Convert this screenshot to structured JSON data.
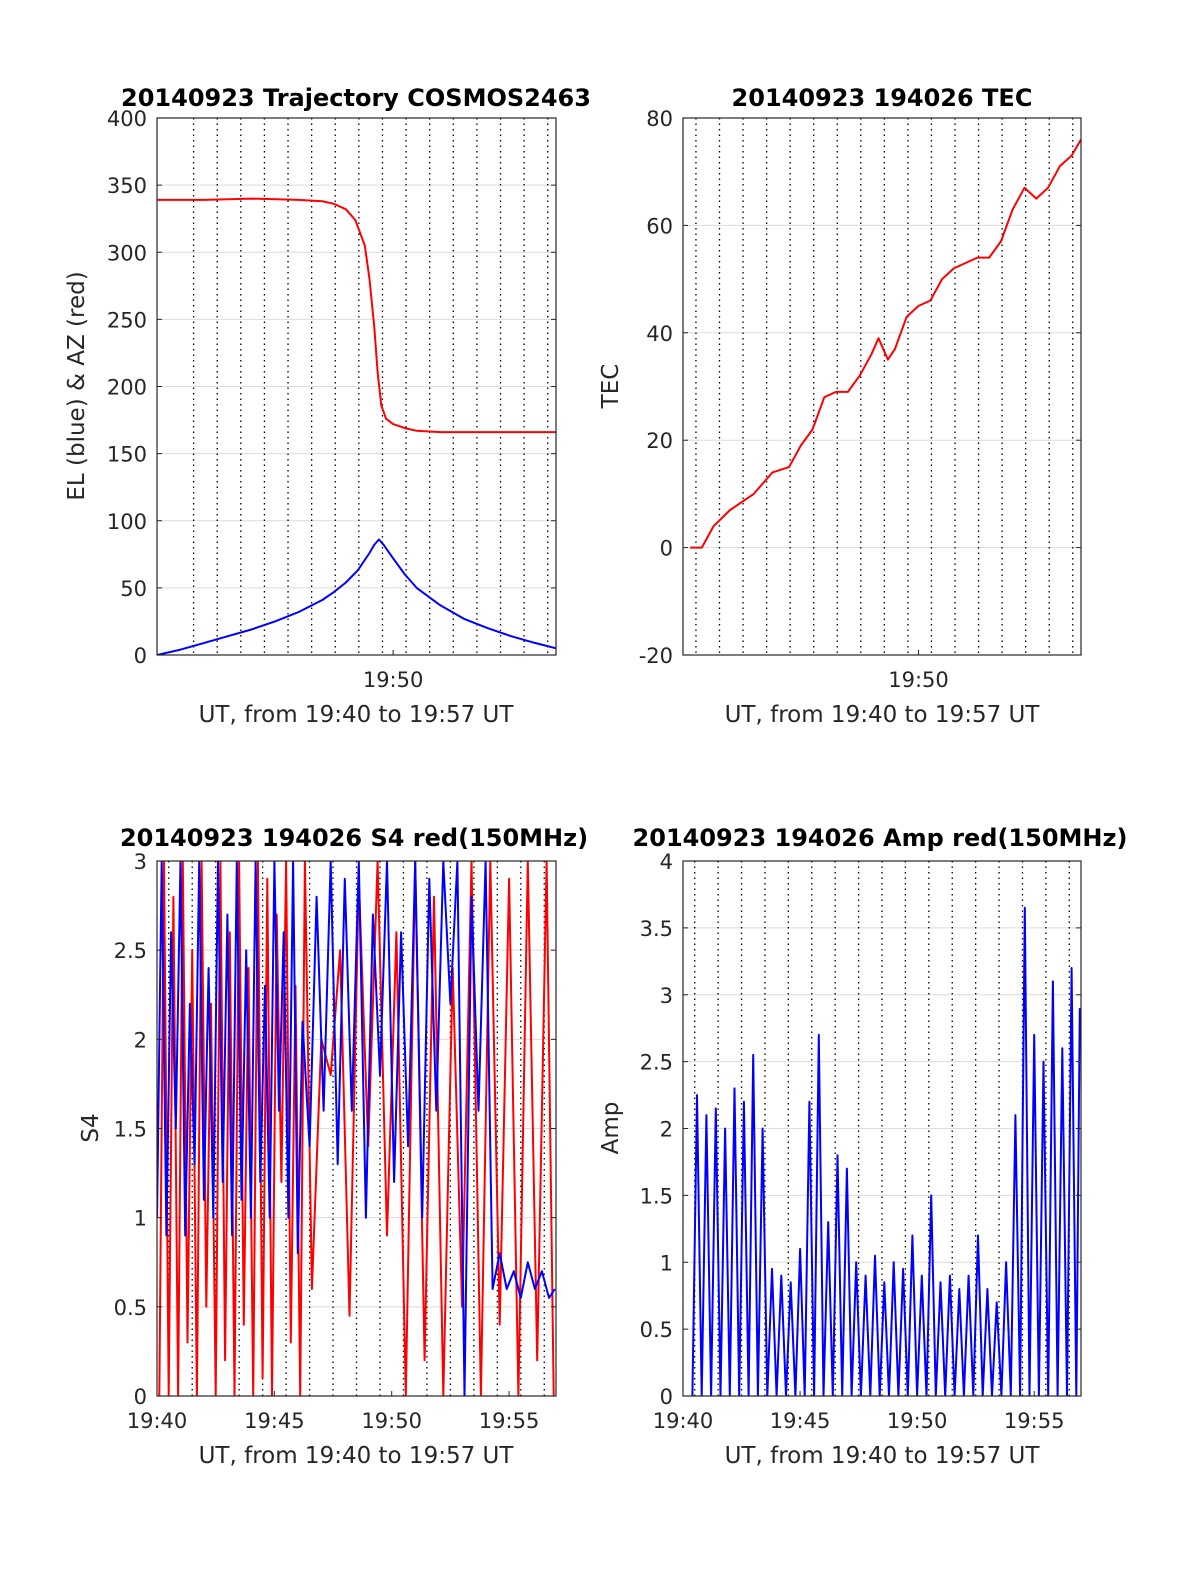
{
  "figure": {
    "background": "#ffffff",
    "grid_color": "#000000",
    "axis_color": "#262626"
  },
  "chart_data": [
    {
      "id": "trajectory",
      "type": "line",
      "title": "20140923 Trajectory COSMOS2463",
      "xlabel": "UT, from 19:40 to 19:57 UT",
      "ylabel": "EL (blue) & AZ (red)",
      "xlim": [
        0,
        16.9
      ],
      "ylim": [
        0,
        400
      ],
      "yticks": [
        0,
        50,
        100,
        150,
        200,
        250,
        300,
        350,
        400
      ],
      "xticks": [
        {
          "value": 10,
          "label": "19:50"
        }
      ],
      "vgrid": [
        1.55,
        2.55,
        3.55,
        4.55,
        5.55,
        6.55,
        7.55,
        8.55,
        9.55,
        10.55,
        11.55,
        12.55,
        13.55,
        14.55,
        15.55,
        16.55
      ],
      "series": [
        {
          "name": "AZ",
          "color": "#ff0000",
          "x": [
            0,
            2,
            4,
            6,
            7,
            7.5,
            8,
            8.4,
            8.8,
            9.0,
            9.2,
            9.35,
            9.5,
            9.7,
            10,
            10.5,
            11,
            12,
            13,
            14,
            15,
            16.9
          ],
          "values": [
            339,
            339,
            340,
            339,
            338,
            336,
            332,
            324,
            305,
            280,
            245,
            210,
            186,
            176,
            172,
            169,
            167,
            166,
            166,
            166,
            166,
            166
          ]
        },
        {
          "name": "EL",
          "color": "#0000ff",
          "x": [
            0,
            1,
            2,
            3,
            4,
            5,
            6,
            7,
            7.5,
            8,
            8.5,
            9.0,
            9.2,
            9.4,
            9.6,
            10,
            10.5,
            11,
            12,
            13,
            14,
            15,
            16,
            16.9
          ],
          "values": [
            0,
            4,
            9,
            14,
            19,
            25,
            32,
            41,
            47,
            54,
            63,
            76,
            82,
            86,
            82,
            72,
            60,
            50,
            37,
            27,
            20,
            14,
            9,
            5
          ]
        }
      ]
    },
    {
      "id": "tec",
      "type": "line",
      "title": "20140923 194026 TEC",
      "xlabel": "UT, from 19:40 to 19:57 UT",
      "ylabel": "TEC",
      "xlim": [
        0,
        16.9
      ],
      "ylim": [
        -20,
        80
      ],
      "yticks": [
        -20,
        0,
        20,
        40,
        60,
        80
      ],
      "xticks": [
        {
          "value": 10,
          "label": "19:50"
        }
      ],
      "vgrid": [
        0.55,
        1.55,
        2.55,
        3.55,
        4.55,
        5.55,
        6.55,
        7.55,
        8.55,
        9.55,
        10.55,
        11.55,
        12.55,
        13.55,
        14.55,
        15.55,
        16.55
      ],
      "series": [
        {
          "name": "TEC",
          "color": "#ff0000",
          "x": [
            0.3,
            0.8,
            1.3,
            2,
            3,
            3.8,
            4.5,
            5,
            5.5,
            6,
            6.5,
            7,
            7.5,
            8,
            8.3,
            8.7,
            9.0,
            9.5,
            10,
            10.5,
            11,
            11.5,
            12,
            12.5,
            13,
            13.5,
            14,
            14.5,
            15,
            15.5,
            16,
            16.5,
            16.9
          ],
          "values": [
            0,
            0,
            4,
            7,
            10,
            14,
            15,
            19,
            22,
            28,
            29,
            29,
            32,
            36,
            39,
            35,
            37,
            43,
            45,
            46,
            50,
            52,
            53,
            54,
            54,
            57,
            63,
            67,
            65,
            67,
            71,
            73,
            76
          ]
        }
      ]
    },
    {
      "id": "s4",
      "type": "line",
      "title": "20140923 194026 S4 red(150MHz)",
      "xlabel": "UT, from 19:40 to 19:57 UT",
      "ylabel": "S4",
      "xlim": [
        0,
        17
      ],
      "ylim": [
        0,
        3
      ],
      "yticks": [
        0,
        0.5,
        1,
        1.5,
        2,
        2.5,
        3
      ],
      "yticklabels": [
        "0",
        "0.5",
        "1",
        "1.5",
        "2",
        "2.5",
        "3"
      ],
      "xticks": [
        {
          "value": 0,
          "label": "19:40"
        },
        {
          "value": 5,
          "label": "19:45"
        },
        {
          "value": 10,
          "label": "19:50"
        },
        {
          "value": 15,
          "label": "19:55"
        }
      ],
      "vgrid": [
        0.5,
        1.5,
        2.5,
        3.5,
        4.5,
        5.5,
        6.5,
        7.5,
        8.5,
        9.5,
        10.5,
        11.5,
        12.5,
        13.5,
        14.5,
        15.5,
        16.5
      ],
      "series": [
        {
          "name": "S4 red",
          "color": "#ff0000",
          "x": [
            0.1,
            0.3,
            0.5,
            0.7,
            0.9,
            1.1,
            1.3,
            1.5,
            1.7,
            1.9,
            2.1,
            2.3,
            2.5,
            2.7,
            2.9,
            3.1,
            3.3,
            3.5,
            3.7,
            3.9,
            4.1,
            4.3,
            4.5,
            4.7,
            4.9,
            5.1,
            5.3,
            5.5,
            5.7,
            5.9,
            6.1,
            6.3,
            6.6,
            7.0,
            7.4,
            7.8,
            8.2,
            8.6,
            9.0,
            9.4,
            9.8,
            10.2,
            10.6,
            11.0,
            11.4,
            11.8,
            12.2,
            12.6,
            13.0,
            13.4,
            13.8,
            14.2,
            14.6,
            15.0,
            15.4,
            15.8,
            16.2,
            16.6,
            16.9
          ],
          "values": [
            0,
            3,
            0,
            2.8,
            0,
            3,
            0.3,
            2.5,
            0,
            3,
            0.5,
            2.2,
            0,
            3,
            0.2,
            2.6,
            0,
            3,
            0.4,
            2.4,
            0,
            3,
            0.1,
            2.9,
            0,
            2.7,
            1.2,
            3,
            0.3,
            2.3,
            0,
            3,
            0.6,
            2.0,
            1.8,
            2.5,
            0.45,
            2.9,
            1.4,
            3,
            0.9,
            2.6,
            0,
            3,
            0.2,
            2.8,
            0,
            2.4,
            0.5,
            3,
            0,
            3,
            0.4,
            2.9,
            0,
            3,
            0.2,
            3,
            0
          ]
        },
        {
          "name": "S4 blue",
          "color": "#0000ff",
          "x": [
            0.0,
            0.2,
            0.4,
            0.6,
            0.8,
            1.0,
            1.2,
            1.4,
            1.6,
            1.8,
            2.0,
            2.2,
            2.4,
            2.6,
            2.8,
            3.0,
            3.2,
            3.4,
            3.6,
            3.8,
            4.0,
            4.2,
            4.4,
            4.6,
            4.8,
            5.0,
            5.2,
            5.4,
            5.6,
            5.8,
            6.0,
            6.2,
            6.5,
            6.8,
            7.1,
            7.4,
            7.7,
            8.0,
            8.3,
            8.6,
            8.9,
            9.2,
            9.5,
            9.8,
            10.1,
            10.4,
            10.7,
            11.0,
            11.3,
            11.6,
            11.9,
            12.2,
            12.5,
            12.8,
            13.1,
            13.4,
            13.7,
            14.0,
            14.3,
            14.6,
            14.9,
            15.2,
            15.5,
            15.8,
            16.1,
            16.4,
            16.7,
            16.95
          ],
          "values": [
            1.0,
            3,
            0.9,
            2.6,
            1.5,
            3,
            0.9,
            2.2,
            1.3,
            3,
            1.1,
            2.4,
            1.0,
            3,
            1.2,
            2.7,
            0.9,
            3,
            1.1,
            2.5,
            1.0,
            3,
            1.2,
            2.3,
            1.0,
            3,
            1.6,
            2.6,
            1.0,
            3,
            0.8,
            2.1,
            1.4,
            2.8,
            1.6,
            3,
            1.3,
            2.9,
            1.6,
            3,
            1.0,
            2.7,
            1.8,
            3,
            1.2,
            2.6,
            1.4,
            3,
            1.0,
            2.9,
            1.6,
            3,
            2.2,
            3,
            0,
            2.8,
            1.6,
            3,
            0.6,
            0.8,
            0.6,
            0.7,
            0.55,
            0.75,
            0.6,
            0.7,
            0.55,
            0.6
          ]
        }
      ]
    },
    {
      "id": "amp",
      "type": "line",
      "title": "20140923 194026 Amp red(150MHz)",
      "xlabel": "UT, from 19:40 to 19:57 UT",
      "ylabel": "Amp",
      "xlim": [
        0,
        17
      ],
      "ylim": [
        0,
        4
      ],
      "yticks": [
        0,
        0.5,
        1,
        1.5,
        2,
        2.5,
        3,
        3.5,
        4
      ],
      "yticklabels": [
        "0",
        "0.5",
        "1",
        "1.5",
        "2",
        "2.5",
        "3",
        "3.5",
        "4"
      ],
      "xticks": [
        {
          "value": 0,
          "label": "19:40"
        },
        {
          "value": 5,
          "label": "19:45"
        },
        {
          "value": 10,
          "label": "19:50"
        },
        {
          "value": 15,
          "label": "19:55"
        }
      ],
      "vgrid": [
        0.5,
        1.5,
        2.5,
        3.5,
        4.5,
        5.5,
        6.5,
        7.5,
        8.5,
        9.5,
        10.5,
        11.5,
        12.5,
        13.5,
        14.5,
        15.5,
        16.5
      ],
      "series": [
        {
          "name": "Amp",
          "color": "#0000ff",
          "x": [
            0.4,
            0.6,
            0.8,
            1.0,
            1.2,
            1.4,
            1.6,
            1.8,
            2.0,
            2.2,
            2.4,
            2.6,
            2.8,
            3.0,
            3.2,
            3.4,
            3.6,
            3.8,
            4.0,
            4.2,
            4.4,
            4.6,
            4.8,
            5.0,
            5.2,
            5.4,
            5.6,
            5.8,
            6.0,
            6.2,
            6.4,
            6.6,
            6.8,
            7.0,
            7.2,
            7.4,
            7.6,
            7.8,
            8.0,
            8.2,
            8.4,
            8.6,
            8.8,
            9.0,
            9.2,
            9.4,
            9.6,
            9.8,
            10.0,
            10.2,
            10.4,
            10.6,
            10.8,
            11.0,
            11.2,
            11.4,
            11.6,
            11.8,
            12.0,
            12.2,
            12.4,
            12.6,
            12.8,
            13.0,
            13.2,
            13.4,
            13.6,
            13.8,
            14.0,
            14.2,
            14.4,
            14.6,
            14.8,
            15.0,
            15.2,
            15.4,
            15.6,
            15.8,
            16.0,
            16.2,
            16.4,
            16.6,
            16.8,
            16.95
          ],
          "values": [
            0,
            2.25,
            0,
            2.1,
            0,
            2.15,
            0,
            2.0,
            0,
            2.3,
            0,
            2.2,
            0,
            2.55,
            0,
            2.0,
            0,
            0.95,
            0,
            0.9,
            0,
            0.85,
            0,
            1.1,
            0,
            2.2,
            0,
            2.7,
            0,
            1.3,
            0,
            1.8,
            0,
            1.7,
            0,
            1.0,
            0,
            0.9,
            0,
            1.05,
            0,
            0.85,
            0,
            1.0,
            0,
            0.95,
            0,
            1.2,
            0,
            0.9,
            0,
            1.5,
            0,
            0.85,
            0,
            0.9,
            0,
            0.8,
            0,
            0.9,
            0,
            1.2,
            0,
            0.8,
            0,
            0.7,
            0,
            1.0,
            0,
            2.1,
            0,
            3.65,
            0,
            2.7,
            0,
            2.5,
            0,
            3.1,
            0,
            2.6,
            0,
            3.2,
            0,
            2.9
          ]
        }
      ]
    }
  ]
}
